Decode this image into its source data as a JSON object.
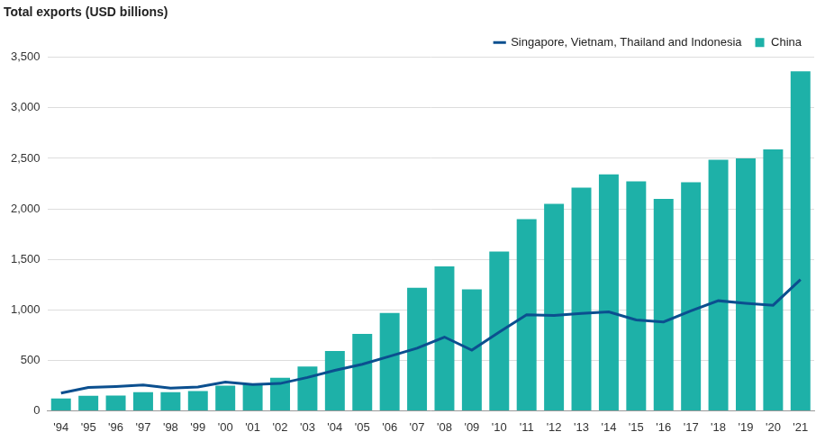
{
  "chart_data": {
    "type": "bar",
    "title": "Total exports (USD billions)",
    "categories": [
      "'94",
      "'95",
      "'96",
      "'97",
      "'98",
      "'99",
      "'00",
      "'01",
      "'02",
      "'03",
      "'04",
      "'05",
      "'06",
      "'07",
      "'08",
      "'09",
      "'10",
      "'11",
      "'12",
      "'13",
      "'14",
      "'15",
      "'16",
      "'17",
      "'18",
      "'19",
      "'20",
      "'21"
    ],
    "series": [
      {
        "name": "China",
        "type": "bar",
        "color": "#1eb1a8",
        "values": [
          121,
          149,
          151,
          183,
          184,
          195,
          249,
          266,
          326,
          438,
          593,
          762,
          969,
          1218,
          1429,
          1202,
          1578,
          1898,
          2049,
          2209,
          2342,
          2273,
          2098,
          2263,
          2487,
          2499,
          2590,
          3362
        ]
      },
      {
        "name": "Singapore, Vietnam, Thailand and Indonesia",
        "type": "line",
        "color": "#0b4f8f",
        "values": [
          175,
          230,
          240,
          255,
          225,
          235,
          285,
          260,
          270,
          330,
          400,
          460,
          540,
          620,
          730,
          600,
          780,
          950,
          945,
          965,
          980,
          900,
          880,
          990,
          1090,
          1065,
          1045,
          1300
        ]
      }
    ],
    "ylim": [
      0,
      3500
    ],
    "yticks": [
      0,
      500,
      {
        "value": 1000,
        "label": "1,000"
      },
      {
        "value": 1500,
        "label": "1,500"
      },
      {
        "value": 2000,
        "label": "2,000"
      },
      {
        "value": 2500,
        "label": "2,500"
      },
      {
        "value": 3000,
        "label": "3,000"
      },
      {
        "value": 3500,
        "label": "3,500"
      }
    ],
    "grid": true,
    "legend": "top-right"
  }
}
